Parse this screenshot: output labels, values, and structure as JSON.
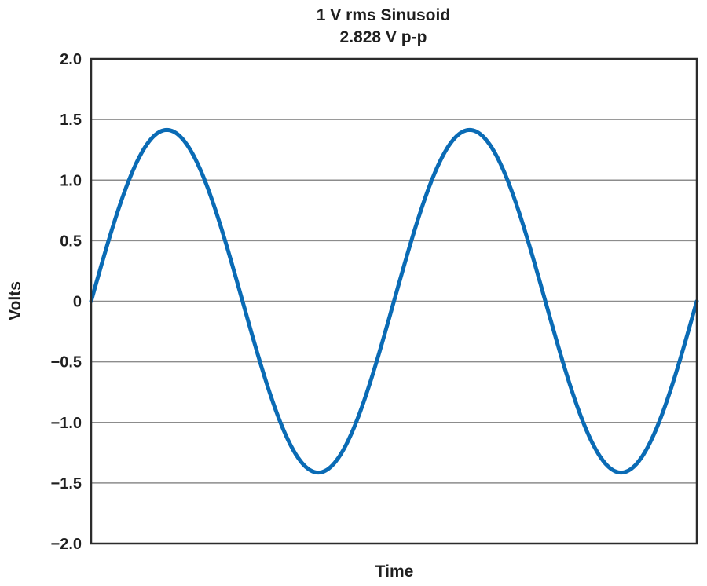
{
  "chart_data": {
    "type": "line",
    "title": "1 V rms Sinusoid",
    "subtitle": "2.828 V p-p",
    "xlabel": "Time",
    "ylabel": "Volts",
    "ylim": [
      -2.0,
      2.0
    ],
    "yticks": [
      2.0,
      1.5,
      1.0,
      0.5,
      0,
      -0.5,
      -1.0,
      -1.5,
      -2.0
    ],
    "ytick_labels": [
      "2.0",
      "1.5",
      "1.0",
      "0.5",
      "0",
      "−0.5",
      "−1.0",
      "−1.5",
      "−2.0"
    ],
    "xlim": [
      0,
      2
    ],
    "x_ticks_shown": false,
    "grid": "horizontal",
    "legend": "none",
    "series": [
      {
        "amplitude": 1.414,
        "periods": 2,
        "x": [
          0,
          0.125,
          0.25,
          0.375,
          0.5,
          0.625,
          0.75,
          0.875,
          1.0,
          1.125,
          1.25,
          1.375,
          1.5,
          1.625,
          1.75,
          1.875,
          2.0
        ],
        "values": [
          0,
          1.0,
          1.414,
          1.0,
          0,
          -1.0,
          -1.414,
          -1.0,
          0,
          1.0,
          1.414,
          1.0,
          0,
          -1.0,
          -1.414,
          -1.0,
          0
        ],
        "color": "#0a6bb5"
      }
    ],
    "colors": {
      "line": "#0a6bb5",
      "grid": "#8c8c8c",
      "frame": "#2b2b2b",
      "text": "#1f1f1f"
    }
  }
}
